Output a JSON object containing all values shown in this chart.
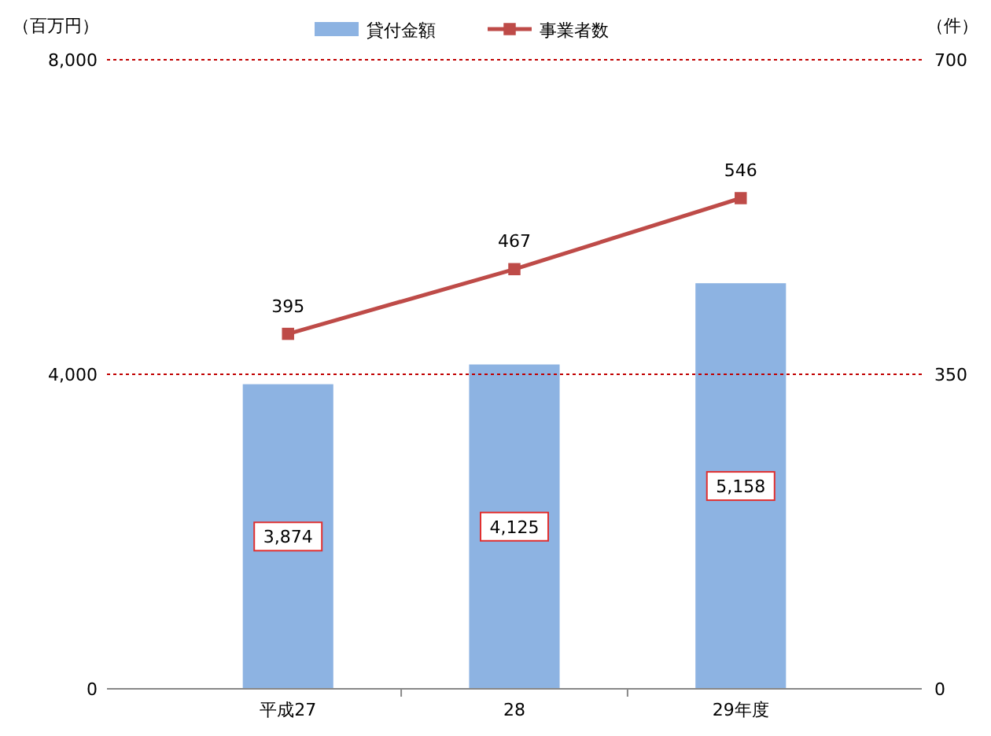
{
  "chart_data": {
    "type": "bar",
    "ylabel": "（百万円）",
    "y2label": "（件）",
    "categories": [
      "平成27",
      "28",
      "29年度"
    ],
    "series": [
      {
        "name": "貸付金額",
        "color": "#8db3e2",
        "values": [
          3874,
          4125,
          5158
        ],
        "value_labels": [
          "3,874",
          "4,125",
          "5,158"
        ]
      },
      {
        "name": "事業者数",
        "type": "line",
        "axis": "y2",
        "color": "#be4b48",
        "values": [
          395,
          467,
          546
        ],
        "value_labels": [
          "395",
          "467",
          "546"
        ],
        "marker": "square"
      }
    ],
    "ylim": [
      0,
      8000
    ],
    "yticks": [
      0,
      {
        "value": 4000,
        "label": "4,000"
      },
      {
        "value": 8000,
        "label": "8,000"
      }
    ],
    "y2lim": [
      0,
      700
    ],
    "y2ticks": [
      0,
      350,
      700
    ],
    "ref_lines": [
      {
        "axis": "y",
        "value": 4000,
        "color": "#c00000",
        "line_style": "dotted"
      },
      {
        "axis": "y",
        "value": 8000,
        "color": "#c00000",
        "line_style": "dotted"
      }
    ],
    "legend": "top"
  }
}
